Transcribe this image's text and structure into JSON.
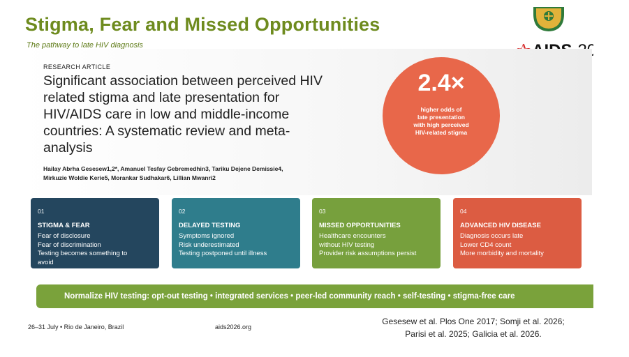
{
  "slide": {
    "title": "Stigma, Fear and Missed Opportunities",
    "subtitle": "The pathway to late HIV diagnosis",
    "logo_text": "AIDS",
    "logo_year": "20"
  },
  "article": {
    "kicker": "RESEARCH ARTICLE",
    "title": "Significant association between perceived HIV related stigma and late presentation for HIV/AIDS care in low and middle-income countries: A systematic review and meta-analysis",
    "authors_line1": "Hailay Abrha Gesesew1,2*, Amanuel Tesfay Gebremedhin3, Tariku Dejene Demissie4,",
    "authors_line2": "Mirkuzie Woldie Kerie5, Morankar Sudhakar6, Lillian Mwanri2"
  },
  "stat": {
    "value": "2.4×",
    "caption_1": "higher odds of",
    "caption_2": "late presentation",
    "caption_3": "with high perceived",
    "caption_4": "HIV-related stigma",
    "color": "#e8674a"
  },
  "cards": [
    {
      "num": "01",
      "head": "STIGMA & FEAR",
      "lines": [
        "Fear of disclosure",
        "Fear of discrimination",
        "Testing becomes something to",
        "avoid"
      ],
      "color": "#24465e"
    },
    {
      "num": "02",
      "head": "DELAYED TESTING",
      "lines": [
        "Symptoms ignored",
        "Risk underestimated",
        "Testing postponed until illness"
      ],
      "color": "#2f7d8c"
    },
    {
      "num": "03",
      "head": "MISSED OPPORTUNITIES",
      "lines": [
        "Healthcare encounters",
        "without HIV testing",
        "Provider risk assumptions persist"
      ],
      "color": "#77a03d"
    },
    {
      "num": "04",
      "head": "ADVANCED HIV DISEASE",
      "lines": [
        "Diagnosis occurs late",
        "Lower CD4 count",
        "More morbidity and mortality"
      ],
      "color": "#dc5c42"
    }
  ],
  "banner": "Normalize HIV testing: opt-out testing  •  integrated services  •  peer-led community reach  •  self-testing  •  stigma-free care",
  "footer": {
    "event": "26–31 July  •  Rio de Janeiro, Brazil",
    "site": "aids2026.org",
    "refs_line1": "Gesesew et al. Plos One 2017; Somji et al. 2026;",
    "refs_line2": "Parisi et al. 2025; Galicia et al. 2026."
  }
}
